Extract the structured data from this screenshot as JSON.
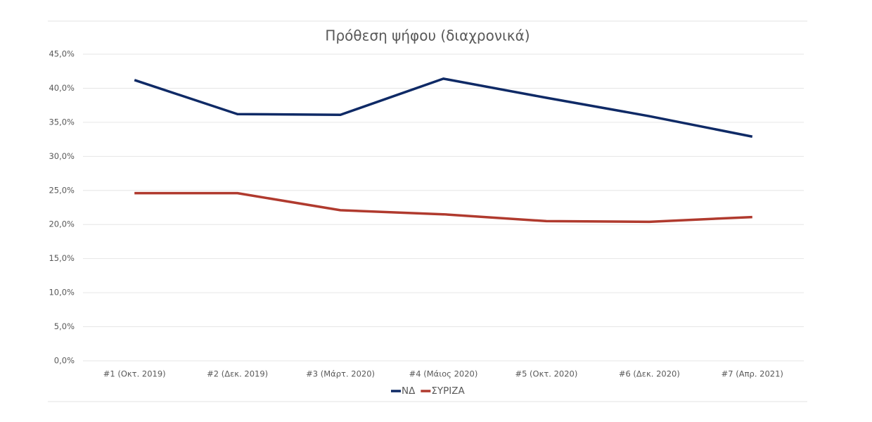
{
  "chart_data": {
    "type": "line",
    "title": "Πρόθεση ψήφου (διαχρονικά)",
    "categories": [
      "#1 (Οκτ. 2019)",
      "#2 (Δεκ. 2019)",
      "#3 (Μάρτ. 2020)",
      "#4 (Μάιος 2020)",
      "#5 (Οκτ. 2020)",
      "#6 (Δεκ. 2020)",
      "#7 (Απρ. 2021)"
    ],
    "series": [
      {
        "name": "ΝΔ",
        "color": "#0f2a66",
        "values": [
          41.2,
          36.2,
          36.1,
          41.4,
          38.6,
          35.9,
          32.9
        ]
      },
      {
        "name": "ΣΥΡΙΖΑ",
        "color": "#b03a2e",
        "values": [
          24.6,
          24.6,
          22.1,
          21.5,
          20.5,
          20.4,
          21.1
        ]
      }
    ],
    "ylim": [
      0,
      45
    ],
    "yticks": [
      {
        "value": 0,
        "label": "0,0%"
      },
      {
        "value": 5,
        "label": "5,0%"
      },
      {
        "value": 10,
        "label": "10,0%"
      },
      {
        "value": 15,
        "label": "15,0%"
      },
      {
        "value": 20,
        "label": "20,0%"
      },
      {
        "value": 25,
        "label": "25,0%"
      },
      {
        "value": 30,
        "label": "30,0%"
      },
      {
        "value": 35,
        "label": "35,0%"
      },
      {
        "value": 40,
        "label": "40,0%"
      },
      {
        "value": 45,
        "label": "45,0%"
      }
    ],
    "grid": true,
    "legend": "bottom"
  }
}
